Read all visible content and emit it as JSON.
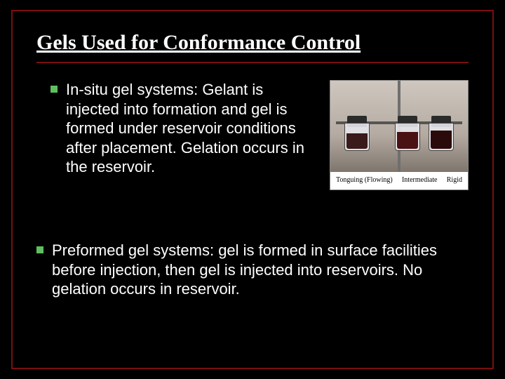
{
  "slide": {
    "title": "Gels Used for Conformance Control",
    "title_fontsize": 30,
    "title_font": "Times New Roman",
    "title_underline": true,
    "accent_color": "#7a0e0e",
    "bullet_color": "#5fbf5f",
    "background_color": "#000000",
    "text_color": "#ffffff",
    "body_fontsize": 22,
    "bullets": [
      {
        "text": "In-situ gel systems: Gelant is injected into formation and gel is formed under reservoir conditions after placement. Gelation occurs in the reservoir.",
        "indent": true
      },
      {
        "text": "Preformed gel systems: gel is formed in surface facilities before injection, then gel is injected into reservoirs. No gelation occurs in reservoir.",
        "indent": false
      }
    ],
    "figure": {
      "caption_left": "Tonguing (Flowing)",
      "caption_mid": "Intermediate",
      "caption_right": "Rigid",
      "caption_fontsize": 10,
      "photo_bg_top": "#cfc7bf",
      "photo_bg_bottom": "#7e756c",
      "beakers": [
        {
          "pos": "left",
          "fill_color": "#3a1a1a",
          "fill_height": 22
        },
        {
          "pos": "mid",
          "fill_color": "#4a1212",
          "fill_height": 24
        },
        {
          "pos": "right",
          "fill_color": "#2a0a0a",
          "fill_height": 26
        }
      ]
    }
  }
}
